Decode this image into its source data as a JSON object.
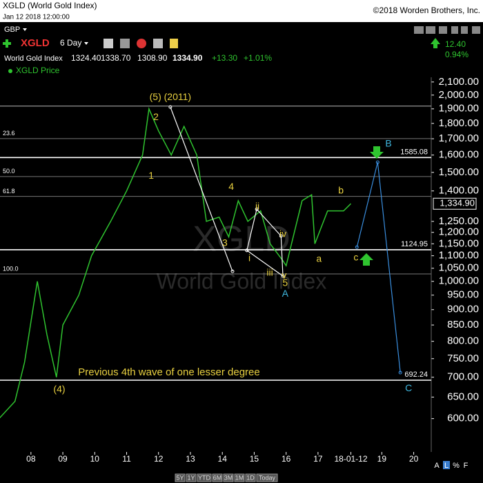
{
  "header": {
    "title": "XGLD (World Gold Index)",
    "copyright": "©2018 Worden Brothers, Inc.",
    "timestamp": "Jan 12 2018 12:00:00",
    "currency": "GBP",
    "symbol": "XGLD",
    "period": "6 Day",
    "name": "World Gold Index",
    "open": "1324.40",
    "high": "1338.70",
    "low": "1308.90",
    "close": "1334.90",
    "change": "+13.30",
    "change_pct": "+1.01%",
    "side_change": "12.40",
    "side_change_pct": "0.94%",
    "watermark_symbol": "XGLD",
    "watermark_name": "World Gold Index",
    "periods": [
      "5Y",
      "1Y",
      "YTD",
      "6M",
      "3M",
      "1M",
      "1D",
      "Today"
    ],
    "scale_buttons": [
      "A",
      "L",
      "%",
      "F"
    ]
  },
  "chart_data": {
    "type": "line",
    "log_scale": true,
    "xlim": [
      2007.03,
      2020.55
    ],
    "ylim": [
      530,
      2137
    ],
    "xticks": [
      {
        "value": 2008,
        "label": "08"
      },
      {
        "value": 2009,
        "label": "09"
      },
      {
        "value": 2010,
        "label": "10"
      },
      {
        "value": 2011,
        "label": "11"
      },
      {
        "value": 2012,
        "label": "12"
      },
      {
        "value": 2013,
        "label": "13"
      },
      {
        "value": 2014,
        "label": "14"
      },
      {
        "value": 2015,
        "label": "15"
      },
      {
        "value": 2016,
        "label": "16"
      },
      {
        "value": 2017,
        "label": "17"
      },
      {
        "value": 2018.03,
        "label": "18-01-12"
      },
      {
        "value": 2019,
        "label": "19"
      },
      {
        "value": 2020,
        "label": "20"
      }
    ],
    "yticks": [
      {
        "value": 2100,
        "label": "2,100.00"
      },
      {
        "value": 2000,
        "label": "2,000.00"
      },
      {
        "value": 1900,
        "label": "1,900.00"
      },
      {
        "value": 1800,
        "label": "1,800.00"
      },
      {
        "value": 1700,
        "label": "1,700.00"
      },
      {
        "value": 1600,
        "label": "1,600.00"
      },
      {
        "value": 1500,
        "label": "1,500.00"
      },
      {
        "value": 1400,
        "label": "1,400.00"
      },
      {
        "value": 1250,
        "label": "1,250.00"
      },
      {
        "value": 1200,
        "label": "1,200.00"
      },
      {
        "value": 1150,
        "label": "1,150.00"
      },
      {
        "value": 1100,
        "label": "1,100.00"
      },
      {
        "value": 1050,
        "label": "1,050.00"
      },
      {
        "value": 1000,
        "label": "1,000.00"
      },
      {
        "value": 950,
        "label": "950.00"
      },
      {
        "value": 900,
        "label": "900.00"
      },
      {
        "value": 850,
        "label": "850.00"
      },
      {
        "value": 800,
        "label": "800.00"
      },
      {
        "value": 750,
        "label": "750.00"
      },
      {
        "value": 700,
        "label": "700.00"
      },
      {
        "value": 650,
        "label": "650.00"
      },
      {
        "value": 600,
        "label": "600.00"
      }
    ],
    "last_price": {
      "value": 1334.9,
      "label": "1,334.90"
    },
    "x": [
      2007.0,
      2007.5,
      2007.8,
      2008.2,
      2008.5,
      2008.8,
      2009.0,
      2009.5,
      2009.9,
      2010.5,
      2011.0,
      2011.5,
      2011.7,
      2012.0,
      2012.4,
      2012.8,
      2013.2,
      2013.5,
      2013.9,
      2014.2,
      2014.5,
      2014.8,
      2015.2,
      2015.5,
      2015.9,
      2016.0,
      2016.5,
      2016.8,
      2016.9,
      2017.3,
      2017.8,
      2018.03
    ],
    "series": [
      {
        "name": "XGLD Price",
        "color": "#2fc42f",
        "values": [
          600,
          640,
          740,
          1000,
          820,
          700,
          850,
          950,
          1100,
          1250,
          1400,
          1600,
          1900,
          1750,
          1600,
          1780,
          1600,
          1250,
          1270,
          1180,
          1350,
          1250,
          1300,
          1150,
          1080,
          1060,
          1350,
          1380,
          1150,
          1300,
          1300,
          1335
        ]
      }
    ],
    "levels": [
      {
        "value": 1920,
        "color": "#bbbbbb"
      },
      {
        "value": 1701,
        "label": "23.6",
        "color": "#777777"
      },
      {
        "value": 1585.08,
        "color": "#ffffff",
        "show_value": true
      },
      {
        "value": 1477,
        "label": "50.0",
        "color": "#777777"
      },
      {
        "value": 1372,
        "label": "61.8",
        "color": "#777777"
      },
      {
        "value": 1124.95,
        "color": "#ffffff",
        "show_value": true
      },
      {
        "value": 1028,
        "label": "100.0",
        "color": "#777777"
      },
      {
        "value": 692.24,
        "color": "#ffffff",
        "show_value": true
      }
    ],
    "wave_lines": [
      {
        "color": "#ffffff",
        "x": [
          2012.37,
          2014.32
        ],
        "y": [
          1913,
          1038
        ]
      },
      {
        "color": "#ffffff",
        "x": [
          2014.77,
          2015.08,
          2015.84,
          2015.9,
          2014.77
        ],
        "y": [
          1122,
          1308,
          1184,
          1020,
          1122
        ]
      },
      {
        "color": "#3a8fe0",
        "x": [
          2018.22,
          2018.87,
          2019.58
        ],
        "y": [
          1136,
          1558,
          712
        ]
      }
    ],
    "annotations": [
      {
        "text": "(5) (2011)",
        "x": 2012.37,
        "y": 1983,
        "color": "#e8d040"
      },
      {
        "text": "2",
        "x": 2011.92,
        "y": 1841,
        "color": "#e8d040"
      },
      {
        "text": "1",
        "x": 2011.77,
        "y": 1480,
        "color": "#e8d040"
      },
      {
        "text": "3",
        "x": 2014.08,
        "y": 1151,
        "color": "#e8d040"
      },
      {
        "text": "4",
        "x": 2014.28,
        "y": 1420,
        "color": "#e8d040"
      },
      {
        "text": "ii",
        "x": 2015.1,
        "y": 1319,
        "color": "#e8d040"
      },
      {
        "text": "iv",
        "x": 2015.9,
        "y": 1190,
        "color": "#e8d040"
      },
      {
        "text": "i",
        "x": 2014.85,
        "y": 1088,
        "color": "#e8d040"
      },
      {
        "text": "iii",
        "x": 2015.49,
        "y": 1031,
        "color": "#e8d040"
      },
      {
        "text": "v",
        "x": 2015.94,
        "y": 1020,
        "color": "#e8d040"
      },
      {
        "text": "5",
        "x": 2015.97,
        "y": 992,
        "color": "#e8d040"
      },
      {
        "text": "A",
        "x": 2015.97,
        "y": 954,
        "color": "#3fb8e0"
      },
      {
        "text": "a",
        "x": 2017.03,
        "y": 1085,
        "color": "#e8d040"
      },
      {
        "text": "b",
        "x": 2017.72,
        "y": 1399,
        "color": "#e8d040"
      },
      {
        "text": "c",
        "x": 2018.19,
        "y": 1091,
        "color": "#e8d040"
      },
      {
        "text": "B",
        "x": 2019.21,
        "y": 1666,
        "color": "#3fb8e0"
      },
      {
        "text": "C",
        "x": 2019.84,
        "y": 671,
        "color": "#3fb8e0"
      },
      {
        "text": "(4)",
        "x": 2008.89,
        "y": 668,
        "color": "#e8d040"
      },
      {
        "text": "Previous 4th wave of one lesser degree",
        "x": 2012.33,
        "y": 712,
        "color": "#e8d040"
      }
    ]
  }
}
